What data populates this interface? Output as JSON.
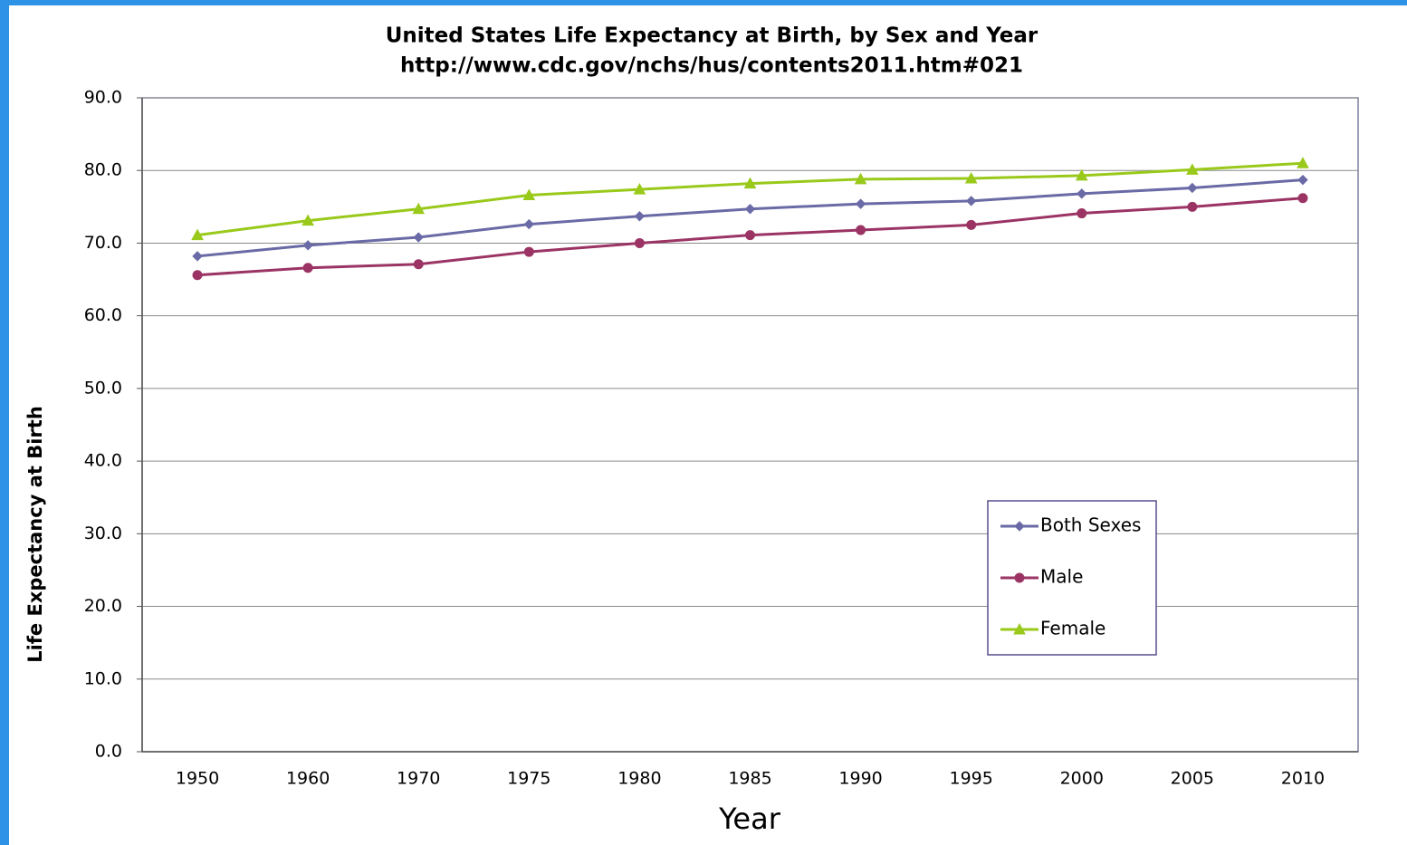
{
  "chart_data": {
    "type": "line",
    "title": "United States Life Expectancy at Birth, by Sex and Year",
    "subtitle": "http://www.cdc.gov/nchs/hus/contents2011.htm#021",
    "x_label": "Year",
    "y_label": "Life Expectancy at Birth",
    "categories": [
      "1950",
      "1960",
      "1970",
      "1975",
      "1980",
      "1985",
      "1990",
      "1995",
      "2000",
      "2005",
      "2010"
    ],
    "series": [
      {
        "name": "Both Sexes",
        "color": "#6a6aa6",
        "marker": "diamond",
        "values": [
          68.2,
          69.7,
          70.8,
          72.6,
          73.7,
          74.7,
          75.4,
          75.8,
          76.8,
          77.6,
          78.7
        ]
      },
      {
        "name": "Male",
        "color": "#9b3464",
        "marker": "circle",
        "values": [
          65.6,
          66.6,
          67.1,
          68.8,
          70.0,
          71.1,
          71.8,
          72.5,
          74.1,
          75.0,
          76.2
        ]
      },
      {
        "name": "Female",
        "color": "#99c91a",
        "marker": "triangle",
        "values": [
          71.1,
          73.1,
          74.7,
          76.6,
          77.4,
          78.2,
          78.8,
          78.9,
          79.3,
          80.1,
          81.0
        ]
      }
    ],
    "ylim": [
      0,
      90
    ],
    "yticks": [
      {
        "value": 0,
        "label": "0.0"
      },
      {
        "value": 10,
        "label": "10.0"
      },
      {
        "value": 20,
        "label": "20.0"
      },
      {
        "value": 30,
        "label": "30.0"
      },
      {
        "value": 40,
        "label": "40.0"
      },
      {
        "value": 50,
        "label": "50.0"
      },
      {
        "value": 60,
        "label": "60.0"
      },
      {
        "value": 70,
        "label": "70.0"
      },
      {
        "value": 80,
        "label": "80.0"
      },
      {
        "value": 90,
        "label": "90.0"
      }
    ],
    "grid": true
  }
}
